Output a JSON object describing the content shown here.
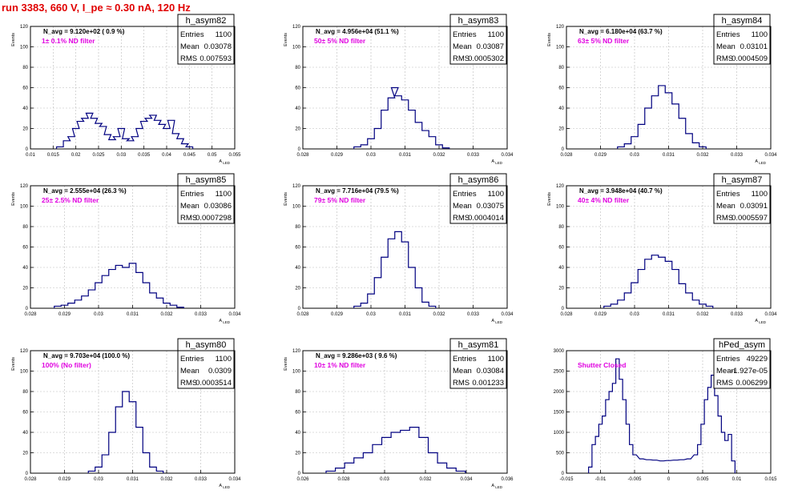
{
  "run_title": "run 3383,   660 V, I_pe ≈ 0.30 nA, 120 Hz",
  "colors": {
    "title": "#e00000",
    "histogram": "#000080",
    "annotation": "#e000e0",
    "grid": "#bbbbbb"
  },
  "chart_data": [
    {
      "type": "histogram",
      "title": "h_asym82",
      "stats": {
        "entries_label": "Entries",
        "entries": "1100",
        "mean_label": "Mean",
        "mean": "0.03078",
        "rms_label": "RMS",
        "rms": "0.007593"
      },
      "navg_text": "N_avg = 9.120e+02 ( 0.9 %)",
      "filter_text": "1± 0.1% ND filter",
      "ylabel": "Events",
      "xlabel": "A_LED",
      "xlim": [
        0.01,
        0.055
      ],
      "ylim": [
        0,
        120
      ],
      "xticks": [
        "0.01",
        "0.015",
        "0.02",
        "0.025",
        "0.03",
        "0.035",
        "0.04",
        "0.045",
        "0.05",
        "0.055"
      ],
      "yticks": [
        "0",
        "20",
        "40",
        "60",
        "80",
        "100",
        "120"
      ],
      "x": [
        0.0165,
        0.018,
        0.019,
        0.02,
        0.021,
        0.022,
        0.023,
        0.024,
        0.025,
        0.026,
        0.027,
        0.028,
        0.029,
        0.03,
        0.031,
        0.032,
        0.033,
        0.034,
        0.035,
        0.036,
        0.037,
        0.038,
        0.039,
        0.04,
        0.041,
        0.042,
        0.043,
        0.044,
        0.045
      ],
      "values": [
        2,
        8,
        12,
        20,
        27,
        30,
        35,
        30,
        25,
        22,
        14,
        9,
        12,
        20,
        10,
        8,
        12,
        20,
        27,
        30,
        33,
        28,
        24,
        20,
        28,
        15,
        10,
        5,
        2
      ]
    },
    {
      "type": "histogram",
      "title": "h_asym83",
      "stats": {
        "entries_label": "Entries",
        "entries": "1100",
        "mean_label": "Mean",
        "mean": "0.03087",
        "rms_label": "RMS",
        "rms": "0.0005302"
      },
      "navg_text": "N_avg = 4.956e+04 (51.1 %)",
      "filter_text": "50± 5% ND filter",
      "ylabel": "Events",
      "xlabel": "A_LED",
      "xlim": [
        0.028,
        0.034
      ],
      "ylim": [
        0,
        120
      ],
      "xticks": [
        "0.028",
        "0.029",
        "0.03",
        "0.031",
        "0.032",
        "0.033",
        "0.034"
      ],
      "yticks": [
        "0",
        "20",
        "40",
        "60",
        "80",
        "100",
        "120"
      ],
      "x": [
        0.0296,
        0.0298,
        0.03,
        0.0302,
        0.0304,
        0.0306,
        0.0307,
        0.0308,
        0.031,
        0.0312,
        0.0314,
        0.0316,
        0.0318,
        0.032,
        0.0322
      ],
      "values": [
        2,
        4,
        10,
        20,
        38,
        50,
        60,
        52,
        48,
        38,
        26,
        18,
        12,
        4,
        1
      ]
    },
    {
      "type": "histogram",
      "title": "h_asym84",
      "stats": {
        "entries_label": "Entries",
        "entries": "1100",
        "mean_label": "Mean",
        "mean": "0.03101",
        "rms_label": "RMS",
        "rms": "0.0004509"
      },
      "navg_text": "N_avg = 6.180e+04 (63.7 %)",
      "filter_text": "63± 5% ND filter",
      "ylabel": "Events",
      "xlabel": "A_LED",
      "xlim": [
        0.028,
        0.034
      ],
      "ylim": [
        0,
        120
      ],
      "xticks": [
        "0.028",
        "0.029",
        "0.03",
        "0.031",
        "0.032",
        "0.033",
        "0.034"
      ],
      "yticks": [
        "0",
        "20",
        "40",
        "60",
        "80",
        "100",
        "120"
      ],
      "x": [
        0.0296,
        0.0298,
        0.03,
        0.0302,
        0.0304,
        0.0306,
        0.0308,
        0.031,
        0.0312,
        0.0314,
        0.0316,
        0.0318,
        0.032
      ],
      "values": [
        2,
        5,
        12,
        24,
        40,
        52,
        62,
        55,
        44,
        30,
        15,
        6,
        2
      ]
    },
    {
      "type": "histogram",
      "title": "h_asym85",
      "stats": {
        "entries_label": "Entries",
        "entries": "1100",
        "mean_label": "Mean",
        "mean": "0.03086",
        "rms_label": "RMS",
        "rms": "0.0007298"
      },
      "navg_text": "N_avg = 2.555e+04 (26.3 %)",
      "filter_text": "25± 2.5% ND filter",
      "ylabel": "Events",
      "xlabel": "A_LED",
      "xlim": [
        0.028,
        0.034
      ],
      "ylim": [
        0,
        120
      ],
      "xticks": [
        "0.028",
        "0.029",
        "0.03",
        "0.031",
        "0.032",
        "0.033",
        "0.034"
      ],
      "yticks": [
        "0",
        "20",
        "40",
        "60",
        "80",
        "100",
        "120"
      ],
      "x": [
        0.0288,
        0.029,
        0.0292,
        0.0294,
        0.0296,
        0.0298,
        0.03,
        0.0302,
        0.0304,
        0.0306,
        0.0308,
        0.031,
        0.0312,
        0.0314,
        0.0316,
        0.0318,
        0.032,
        0.0322,
        0.0324
      ],
      "values": [
        2,
        3,
        5,
        8,
        12,
        18,
        25,
        32,
        38,
        42,
        40,
        44,
        35,
        25,
        15,
        10,
        5,
        3,
        1
      ]
    },
    {
      "type": "histogram",
      "title": "h_asym86",
      "stats": {
        "entries_label": "Entries",
        "entries": "1100",
        "mean_label": "Mean",
        "mean": "0.03075",
        "rms_label": "RMS",
        "rms": "0.0004014"
      },
      "navg_text": "N_avg = 7.716e+04 (79.5 %)",
      "filter_text": "79± 5% ND filter",
      "ylabel": "Events",
      "xlabel": "A_LED",
      "xlim": [
        0.028,
        0.034
      ],
      "ylim": [
        0,
        120
      ],
      "xticks": [
        "0.028",
        "0.029",
        "0.03",
        "0.031",
        "0.032",
        "0.033",
        "0.034"
      ],
      "yticks": [
        "0",
        "20",
        "40",
        "60",
        "80",
        "100",
        "120"
      ],
      "x": [
        0.0296,
        0.0298,
        0.03,
        0.0302,
        0.0304,
        0.0306,
        0.0308,
        0.031,
        0.0312,
        0.0314,
        0.0316,
        0.0318
      ],
      "values": [
        2,
        5,
        14,
        30,
        50,
        68,
        75,
        65,
        40,
        20,
        6,
        2
      ]
    },
    {
      "type": "histogram",
      "title": "h_asym87",
      "stats": {
        "entries_label": "Entries",
        "entries": "1100",
        "mean_label": "Mean",
        "mean": "0.03091",
        "rms_label": "RMS",
        "rms": "0.0005597"
      },
      "navg_text": "N_avg = 3.948e+04 (40.7 %)",
      "filter_text": "40± 4% ND filter",
      "ylabel": "Events",
      "xlabel": "A_LED",
      "xlim": [
        0.028,
        0.034
      ],
      "ylim": [
        0,
        120
      ],
      "xticks": [
        "0.028",
        "0.029",
        "0.03",
        "0.031",
        "0.032",
        "0.033",
        "0.034"
      ],
      "yticks": [
        "0",
        "20",
        "40",
        "60",
        "80",
        "100",
        "120"
      ],
      "x": [
        0.0292,
        0.0294,
        0.0296,
        0.0298,
        0.03,
        0.0302,
        0.0304,
        0.0306,
        0.0308,
        0.031,
        0.0312,
        0.0314,
        0.0316,
        0.0318,
        0.032,
        0.0322
      ],
      "values": [
        2,
        4,
        8,
        15,
        25,
        38,
        48,
        52,
        50,
        46,
        38,
        24,
        15,
        8,
        4,
        2
      ]
    },
    {
      "type": "histogram",
      "title": "h_asym80",
      "stats": {
        "entries_label": "Entries",
        "entries": "1100",
        "mean_label": "Mean",
        "mean": "0.0309",
        "rms_label": "RMS",
        "rms": "0.0003514"
      },
      "navg_text": "N_avg = 9.703e+04 (100.0 %)",
      "filter_text": "100% (No filter)",
      "ylabel": "Events",
      "xlabel": "A_LED",
      "xlim": [
        0.028,
        0.034
      ],
      "ylim": [
        0,
        120
      ],
      "xticks": [
        "0.028",
        "0.029",
        "0.03",
        "0.031",
        "0.032",
        "0.033",
        "0.034"
      ],
      "yticks": [
        "0",
        "20",
        "40",
        "60",
        "80",
        "100",
        "120"
      ],
      "x": [
        0.0298,
        0.03,
        0.0302,
        0.0304,
        0.0306,
        0.0308,
        0.031,
        0.0312,
        0.0314,
        0.0316,
        0.0318
      ],
      "values": [
        2,
        6,
        18,
        40,
        65,
        80,
        70,
        45,
        20,
        6,
        2
      ]
    },
    {
      "type": "histogram",
      "title": "h_asym81",
      "stats": {
        "entries_label": "Entries",
        "entries": "1100",
        "mean_label": "Mean",
        "mean": "0.03084",
        "rms_label": "RMS",
        "rms": "0.001233"
      },
      "navg_text": "N_avg = 9.286e+03 ( 9.6 %)",
      "filter_text": "10± 1% ND filter",
      "ylabel": "Events",
      "xlabel": "A_LED",
      "xlim": [
        0.0255,
        0.0365
      ],
      "ylim": [
        0,
        120
      ],
      "xticks": [
        "0.026",
        "0.028",
        "0.03",
        "0.032",
        "0.034",
        "0.036"
      ],
      "yticks": [
        "0",
        "20",
        "40",
        "60",
        "80",
        "100",
        "120"
      ],
      "x": [
        0.027,
        0.0275,
        0.028,
        0.0285,
        0.029,
        0.0295,
        0.03,
        0.0305,
        0.031,
        0.0315,
        0.032,
        0.0325,
        0.033,
        0.0335,
        0.034
      ],
      "values": [
        2,
        5,
        10,
        15,
        20,
        28,
        35,
        40,
        42,
        45,
        35,
        20,
        10,
        5,
        2
      ]
    },
    {
      "type": "histogram",
      "title": "hPed_asym",
      "stats": {
        "entries_label": "Entries",
        "entries": "49229",
        "mean_label": "Mean",
        "mean": "-1.927e-05",
        "rms_label": "RMS",
        "rms": "0.006299"
      },
      "navg_text": "",
      "filter_text": "Shutter Closed",
      "ylabel": "",
      "xlabel": "",
      "xlim": [
        -0.015,
        0.015
      ],
      "ylim": [
        0,
        3000
      ],
      "xticks": [
        "-0.015",
        "-0.01",
        "-0.005",
        "0",
        "0.005",
        "0.01",
        "0.015"
      ],
      "yticks": [
        "0",
        "500",
        "1000",
        "1500",
        "2000",
        "2500",
        "3000"
      ],
      "x": [
        -0.0115,
        -0.011,
        -0.0105,
        -0.01,
        -0.0095,
        -0.009,
        -0.0085,
        -0.008,
        -0.0075,
        -0.007,
        -0.0065,
        -0.006,
        -0.0055,
        -0.005,
        -0.004,
        -0.003,
        -0.002,
        -0.001,
        0,
        0.001,
        0.002,
        0.003,
        0.004,
        0.0045,
        0.005,
        0.0055,
        0.006,
        0.0065,
        0.007,
        0.0075,
        0.008,
        0.0085,
        0.009,
        0.0095
      ],
      "values": [
        150,
        700,
        900,
        1200,
        1400,
        1800,
        2000,
        2200,
        2800,
        2300,
        1800,
        1200,
        700,
        450,
        350,
        330,
        320,
        300,
        310,
        320,
        330,
        350,
        450,
        700,
        1200,
        1800,
        2100,
        2400,
        1900,
        1400,
        1000,
        800,
        950,
        300
      ]
    }
  ]
}
